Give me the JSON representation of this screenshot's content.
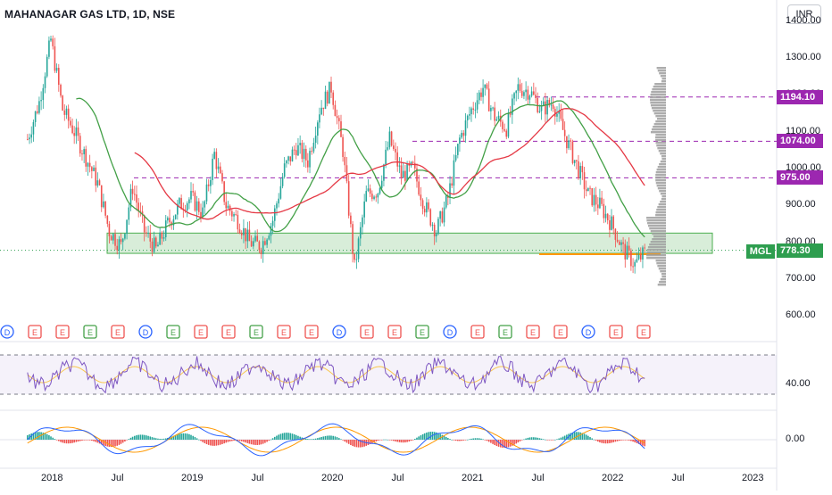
{
  "header": {
    "title": "MAHANAGAR GAS LTD, 1D, NSE",
    "currency_button": "INR",
    "symbol_tag": "MGL"
  },
  "price_axis": {
    "ticks": [
      "1400.00",
      "1300.00",
      "1200.00",
      "1100.00",
      "1000.00",
      "900.00",
      "800.00",
      "700.00",
      "600.00"
    ],
    "labels": [
      {
        "text": "1194.10",
        "color": "#9c27b0"
      },
      {
        "text": "1074.00",
        "color": "#9c27b0"
      },
      {
        "text": "975.00",
        "color": "#9c27b0"
      },
      {
        "text": "778.30",
        "color": "#2e9e4f"
      }
    ]
  },
  "rsi_axis": {
    "ticks": [
      "40.00"
    ]
  },
  "macd_axis": {
    "ticks": [
      "0.00"
    ]
  },
  "time_axis": {
    "labels": [
      "2018",
      "Jul",
      "2019",
      "Jul",
      "2020",
      "Jul",
      "2021",
      "Jul",
      "2022",
      "Jul",
      "2023"
    ]
  },
  "event_markers": {
    "items": [
      "D",
      "E",
      "E",
      "E",
      "E",
      "D",
      "E",
      "E",
      "E",
      "E",
      "E",
      "E",
      "D",
      "E",
      "E",
      "E",
      "D",
      "E",
      "E",
      "E",
      "E",
      "D",
      "E",
      "E"
    ]
  },
  "chart_data": {
    "type": "candlestick",
    "symbol": "MAHANAGAR GAS LTD, 1D, NSE",
    "currency": "INR",
    "last_price": 778.3,
    "horizontal_levels": [
      1194.1,
      1074.0,
      975.0
    ],
    "support_zone": [
      770,
      825
    ],
    "y_range": [
      540,
      1400
    ],
    "close_path": [
      [
        "2017-11",
        1080
      ],
      [
        "2017-12",
        1180
      ],
      [
        "2018-01",
        1350
      ],
      [
        "2018-02",
        1160
      ],
      [
        "2018-03",
        1100
      ],
      [
        "2018-04",
        1030
      ],
      [
        "2018-05",
        960
      ],
      [
        "2018-06",
        830
      ],
      [
        "2018-07",
        790
      ],
      [
        "2018-08",
        950
      ],
      [
        "2018-09",
        830
      ],
      [
        "2018-10",
        780
      ],
      [
        "2018-11",
        850
      ],
      [
        "2018-12",
        900
      ],
      [
        "2019-01",
        920
      ],
      [
        "2019-02",
        880
      ],
      [
        "2019-03",
        1040
      ],
      [
        "2019-04",
        900
      ],
      [
        "2019-05",
        860
      ],
      [
        "2019-06",
        800
      ],
      [
        "2019-07",
        790
      ],
      [
        "2019-08",
        860
      ],
      [
        "2019-09",
        1000
      ],
      [
        "2019-10",
        1060
      ],
      [
        "2019-11",
        1020
      ],
      [
        "2019-12",
        1160
      ],
      [
        "2020-01",
        1220
      ],
      [
        "2020-02",
        1050
      ],
      [
        "2020-03",
        730
      ],
      [
        "2020-04",
        930
      ],
      [
        "2020-05",
        940
      ],
      [
        "2020-06",
        1080
      ],
      [
        "2020-07",
        980
      ],
      [
        "2020-08",
        1000
      ],
      [
        "2020-09",
        900
      ],
      [
        "2020-10",
        830
      ],
      [
        "2020-11",
        920
      ],
      [
        "2020-12",
        1080
      ],
      [
        "2021-01",
        1160
      ],
      [
        "2021-02",
        1220
      ],
      [
        "2021-03",
        1140
      ],
      [
        "2021-04",
        1110
      ],
      [
        "2021-05",
        1220
      ],
      [
        "2021-06",
        1210
      ],
      [
        "2021-07",
        1160
      ],
      [
        "2021-08",
        1180
      ],
      [
        "2021-09",
        1090
      ],
      [
        "2021-10",
        1010
      ],
      [
        "2021-11",
        930
      ],
      [
        "2021-12",
        900
      ],
      [
        "2022-01",
        850
      ],
      [
        "2022-02",
        780
      ],
      [
        "2022-03",
        740
      ],
      [
        "2022-04",
        778
      ]
    ]
  }
}
